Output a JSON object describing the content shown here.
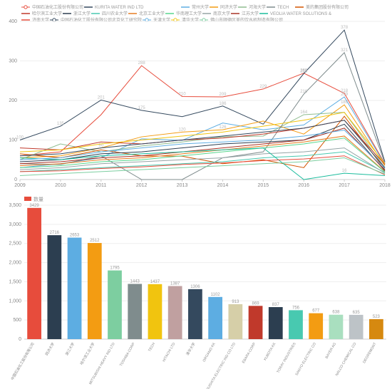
{
  "line_chart": {
    "type": "line",
    "background_color": "#ffffff",
    "grid_color": "#eeeeee",
    "axis_color": "#cccccc",
    "xlabels": [
      "2009",
      "2010",
      "2011",
      "2012",
      "2013",
      "2014",
      "2015",
      "2016",
      "2017",
      "2018"
    ],
    "ylim": [
      0,
      400
    ],
    "ytick_step": 100,
    "label_fontsize": 7,
    "legend_rows": [
      {
        "marker": "circle",
        "stroke": "#e74c3c",
        "fill": "#ffffff",
        "label": "中国石油化工股份有限公司"
      },
      {
        "marker": "none",
        "stroke": "#34495e",
        "label": "KURITA WATER IND LTD"
      },
      {
        "marker": "none",
        "stroke": "#5dade2",
        "label": "常州大学"
      },
      {
        "marker": "none",
        "stroke": "#f39c12",
        "label": "同济大学"
      },
      {
        "marker": "none",
        "stroke": "#8fbc8f",
        "label": "河海大学"
      },
      {
        "marker": "none",
        "stroke": "#7f8c8d",
        "label": "TECH"
      },
      {
        "marker": "none",
        "stroke": "#d35400",
        "label": "美的集团股份有限公司"
      },
      {
        "marker": "none",
        "stroke": "#c0392b",
        "label": "哈尔滨工业大学"
      },
      {
        "marker": "none",
        "stroke": "#2c3e50",
        "label": "浙江大学"
      },
      {
        "marker": "none",
        "stroke": "#48c9b0",
        "label": "四川农业大学"
      },
      {
        "marker": "none",
        "stroke": "#e67e22",
        "label": "北京工业大学"
      },
      {
        "marker": "none",
        "stroke": "#58d68d",
        "label": "华南理工大学"
      },
      {
        "marker": "none",
        "stroke": "#95a5a6",
        "label": "南京大学"
      },
      {
        "marker": "none",
        "stroke": "#a93226",
        "label": "江苏大学"
      },
      {
        "marker": "none",
        "stroke": "#1abc9c",
        "label": "VEOLIA WATER SOLUTIONS &"
      },
      {
        "marker": "none",
        "stroke": "#e74c3c",
        "label": "济南大学"
      },
      {
        "marker": "circle",
        "stroke": "#34495e",
        "fill": "#ffffff",
        "label": "中国石油化工股份有限公司北京化工研究院"
      },
      {
        "marker": "circle",
        "stroke": "#5dade2",
        "fill": "#ffffff",
        "label": "天津大学"
      },
      {
        "marker": "circle",
        "stroke": "#f1c40f",
        "fill": "#ffffff",
        "label": "清华大学"
      },
      {
        "marker": "circle",
        "stroke": "#7dcea0",
        "fill": "#ffffff",
        "label": "佛山市顺德区美的饮水机制造有限公司"
      }
    ],
    "series": [
      {
        "name": "中国石油化工股份有限公司",
        "color": "#e74c3c",
        "values": [
          60,
          70,
          164,
          288,
          210,
          209,
          229,
          269,
          218,
          40
        ],
        "label_idx": [
          3,
          4,
          5,
          6,
          7,
          8
        ]
      },
      {
        "name": "KURITA WATER IND LTD",
        "color": "#34495e",
        "values": [
          100,
          135,
          201,
          175,
          159,
          186,
          140,
          268,
          378,
          45
        ],
        "label_idx": [
          0,
          1,
          2,
          3,
          5,
          7,
          8
        ]
      },
      {
        "name": "常州大学",
        "color": "#5dade2",
        "values": [
          30,
          40,
          55,
          103,
          99,
          143,
          126,
          138,
          209,
          38
        ],
        "label_idx": [
          8
        ]
      },
      {
        "name": "同济大学",
        "color": "#f39c12",
        "values": [
          55,
          60,
          80,
          108,
          120,
          126,
          148,
          115,
          189,
          35
        ],
        "label_idx": [
          2,
          4,
          5,
          8
        ]
      },
      {
        "name": "河海大学",
        "color": "#8fbc8f",
        "values": [
          50,
          90,
          70,
          85,
          95,
          108,
          110,
          164,
          170,
          30
        ],
        "label_idx": [
          7
        ]
      },
      {
        "name": "TECH",
        "color": "#7f8c8d",
        "values": [
          40,
          38,
          60,
          0,
          0,
          55,
          70,
          216,
          321,
          42
        ],
        "label_idx": [
          7,
          8
        ]
      },
      {
        "name": "美的集团股份有限公司",
        "color": "#d35400",
        "values": [
          65,
          55,
          75,
          60,
          59,
          40,
          50,
          30,
          160,
          25
        ],
        "label_idx": []
      },
      {
        "name": "哈尔滨工业大学",
        "color": "#c0392b",
        "values": [
          80,
          75,
          95,
          90,
          100,
          105,
          115,
          130,
          150,
          38
        ],
        "label_idx": []
      },
      {
        "name": "浙江大学",
        "color": "#2c3e50",
        "values": [
          45,
          50,
          65,
          70,
          80,
          90,
          95,
          100,
          140,
          22
        ],
        "label_idx": []
      },
      {
        "name": "四川农业大学",
        "color": "#48c9b0",
        "values": [
          20,
          25,
          30,
          35,
          40,
          45,
          55,
          60,
          70,
          18
        ],
        "label_idx": []
      },
      {
        "name": "北京工业大学",
        "color": "#e67e22",
        "values": [
          35,
          40,
          50,
          55,
          65,
          75,
          85,
          95,
          110,
          20
        ],
        "label_idx": []
      },
      {
        "name": "华南理工大学",
        "color": "#58d68d",
        "values": [
          30,
          35,
          45,
          50,
          60,
          70,
          80,
          90,
          105,
          19
        ],
        "label_idx": []
      },
      {
        "name": "南京大学",
        "color": "#95a5a6",
        "values": [
          25,
          30,
          40,
          45,
          50,
          55,
          65,
          70,
          80,
          16
        ],
        "label_idx": []
      },
      {
        "name": "江苏大学",
        "color": "#a93226",
        "values": [
          40,
          45,
          55,
          60,
          70,
          80,
          90,
          100,
          130,
          24
        ],
        "label_idx": []
      },
      {
        "name": "VEOLIA",
        "color": "#1abc9c",
        "values": [
          55,
          50,
          60,
          65,
          70,
          75,
          80,
          0,
          16,
          10
        ],
        "label_idx": [
          8
        ]
      },
      {
        "name": "济南大学",
        "color": "#e74c3c",
        "values": [
          20,
          22,
          28,
          32,
          38,
          42,
          48,
          52,
          60,
          12
        ],
        "label_idx": []
      },
      {
        "name": "北京化工研究院",
        "color": "#34495e",
        "values": [
          60,
          65,
          80,
          90,
          100,
          110,
          120,
          130,
          150,
          30
        ],
        "label_idx": []
      },
      {
        "name": "天津大学",
        "color": "#5dade2",
        "values": [
          50,
          55,
          70,
          80,
          90,
          95,
          100,
          110,
          125,
          28
        ],
        "label_idx": []
      },
      {
        "name": "清华大学",
        "color": "#f1c40f",
        "values": [
          70,
          75,
          90,
          100,
          110,
          120,
          135,
          150,
          170,
          40
        ],
        "label_idx": []
      },
      {
        "name": "饮水机制造",
        "color": "#7dcea0",
        "values": [
          10,
          15,
          20,
          25,
          30,
          35,
          40,
          45,
          55,
          14
        ],
        "label_idx": []
      }
    ]
  },
  "bar_chart": {
    "type": "bar",
    "background_color": "#ffffff",
    "grid_color": "#eeeeee",
    "axis_color": "#cccccc",
    "legend_label": "数量",
    "legend_color": "#e74c3c",
    "ylim": [
      0,
      3500
    ],
    "ytick_step": 500,
    "label_fontsize": 7,
    "bar_width": 0.7,
    "bars": [
      {
        "label": "中国石油化工股份有限公司",
        "value": 3429,
        "color": "#e74c3c"
      },
      {
        "label": "同济大学",
        "value": 2716,
        "color": "#2c3e50"
      },
      {
        "label": "浙江大学",
        "value": 2653,
        "color": "#5dade2"
      },
      {
        "label": "哈尔滨工业大学",
        "value": 2512,
        "color": "#f39c12"
      },
      {
        "label": "MITSUBISHI HEAVY IND LTD",
        "value": 1795,
        "color": "#7dcea0"
      },
      {
        "label": "TOSHIBA CORP",
        "value": 1443,
        "color": "#7f8c8d"
      },
      {
        "label": "TECH",
        "value": 1437,
        "color": "#f1c40f"
      },
      {
        "label": "HITACHI LTD",
        "value": 1387,
        "color": "#c0a0a0"
      },
      {
        "label": "清华大学",
        "value": 1306,
        "color": "#34495e"
      },
      {
        "label": "ORGANO KK",
        "value": 1102,
        "color": "#5dade2"
      },
      {
        "label": "TSUSHITA ELECTRIC IND CO LTD",
        "value": 913,
        "color": "#d6cfa8"
      },
      {
        "label": "EBARA CORP",
        "value": 869,
        "color": "#c0392b"
      },
      {
        "label": "KUBOTA KK",
        "value": 837,
        "color": "#2c3e50"
      },
      {
        "label": "TORAY INDUSTRIES",
        "value": 756,
        "color": "#48c9b0"
      },
      {
        "label": "SANYO ELECTRIC CO",
        "value": 677,
        "color": "#f39c12"
      },
      {
        "label": "BAYER AG",
        "value": 638,
        "color": "#a9dfbf"
      },
      {
        "label": "NALCO CHEMICAL CO",
        "value": 635,
        "color": "#bdc3c7"
      },
      {
        "label": "DEGREMONT",
        "value": 523,
        "color": "#d68910"
      }
    ]
  }
}
